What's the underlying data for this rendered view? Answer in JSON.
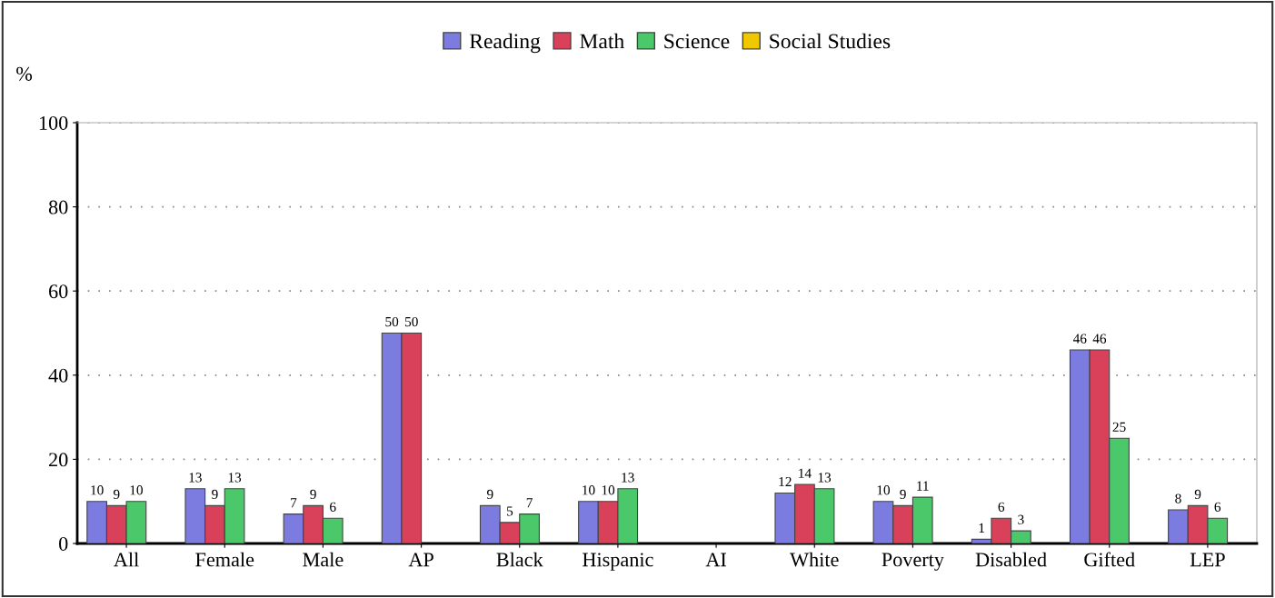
{
  "chart_data": {
    "type": "bar",
    "ylabel": "%",
    "categories": [
      "All",
      "Female",
      "Male",
      "AP",
      "Black",
      "Hispanic",
      "AI",
      "White",
      "Poverty",
      "Disabled",
      "Gifted",
      "LEP"
    ],
    "series": [
      {
        "name": "Reading",
        "color": "#7b7be0",
        "values": [
          10,
          13,
          7,
          50,
          9,
          10,
          null,
          12,
          10,
          1,
          46,
          8
        ]
      },
      {
        "name": "Math",
        "color": "#d9415a",
        "values": [
          9,
          9,
          9,
          50,
          5,
          10,
          null,
          14,
          9,
          6,
          46,
          9
        ]
      },
      {
        "name": "Science",
        "color": "#4bc96a",
        "values": [
          10,
          13,
          6,
          null,
          7,
          13,
          null,
          13,
          11,
          3,
          25,
          6
        ]
      },
      {
        "name": "Social Studies",
        "color": "#f0c800",
        "values": [
          null,
          null,
          null,
          null,
          null,
          null,
          null,
          null,
          null,
          null,
          null,
          null
        ]
      }
    ],
    "ylim": [
      0,
      100
    ],
    "yticks": [
      0,
      20,
      40,
      60,
      80,
      100
    ],
    "grid": "y",
    "legend": "top",
    "data_labels": true
  }
}
